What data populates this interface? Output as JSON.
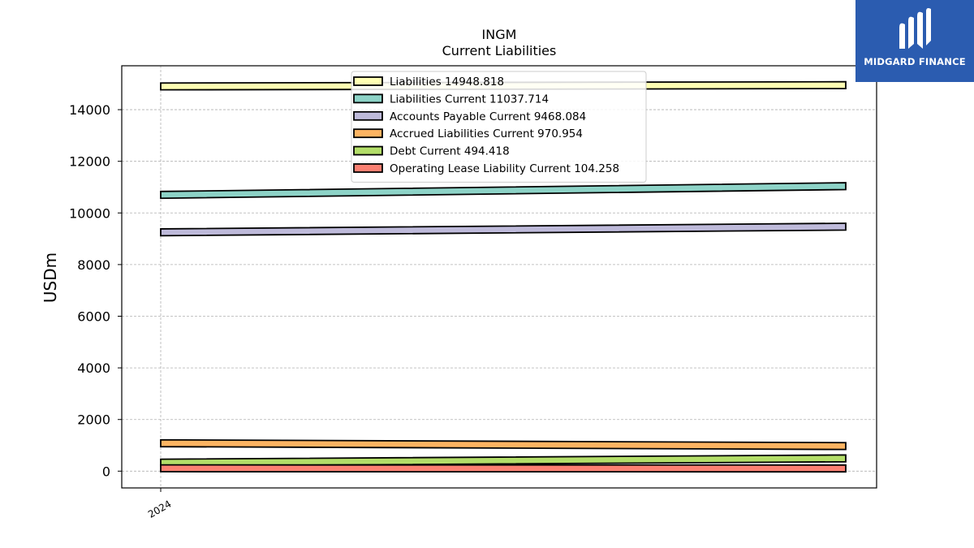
{
  "brand": {
    "name": "MIDGARD FINANCE",
    "bg_color": "#2b5cb0"
  },
  "chart_data": {
    "type": "area",
    "title": "INGM",
    "subtitle": "Current  Liabilities",
    "ylabel": "USDm",
    "xlabel": "",
    "x_tick_labels": [
      "2024"
    ],
    "ylim": [
      -650,
      15700
    ],
    "yticks": [
      0,
      2000,
      4000,
      6000,
      8000,
      10000,
      12000,
      14000
    ],
    "grid": true,
    "legend_position": "top-center",
    "series": [
      {
        "name": "Liabilities",
        "legend_label": "Liabilities  14948.818",
        "values": [
          14900,
          14948.818
        ],
        "color": "#ffffb3"
      },
      {
        "name": "Liabilities Current",
        "legend_label": "Liabilities Current  11037.714",
        "values": [
          10700,
          11037.714
        ],
        "color": "#8dd3c7"
      },
      {
        "name": "Accounts Payable Current",
        "legend_label": "Accounts Payable Current  9468.084",
        "values": [
          9250,
          9468.084
        ],
        "color": "#bebada"
      },
      {
        "name": "Accrued Liabilities Current",
        "legend_label": "Accrued Liabilities Current  970.954",
        "values": [
          1080,
          970.954
        ],
        "color": "#fdb462"
      },
      {
        "name": "Debt Current",
        "legend_label": "Debt Current  494.418",
        "values": [
          330,
          494.418
        ],
        "color": "#b3de69"
      },
      {
        "name": "Operating Lease Liability Current",
        "legend_label": "Operating Lease Liability Current  104.258",
        "values": [
          110,
          104.258
        ],
        "color": "#fb8072"
      }
    ]
  }
}
